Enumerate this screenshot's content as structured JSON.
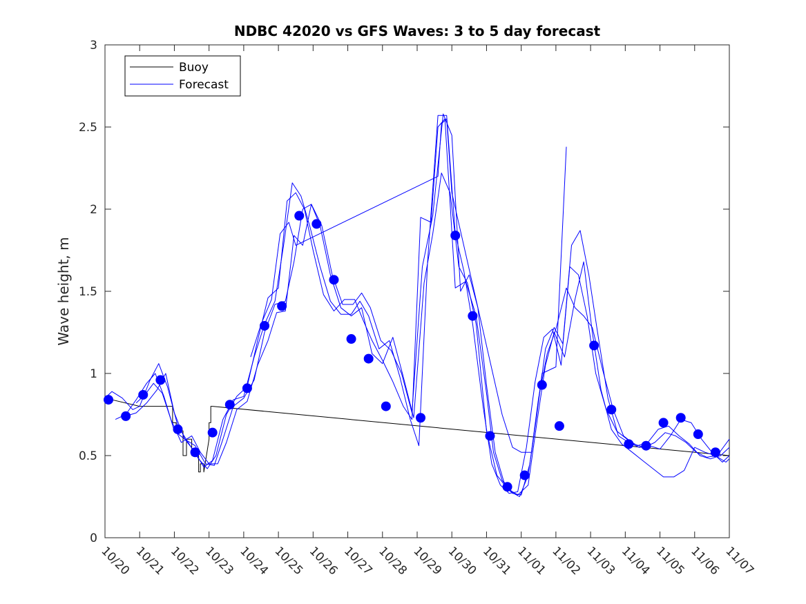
{
  "chart_data": {
    "type": "line",
    "title": "NDBC 42020 vs GFS Waves: 3 to 5 day forecast",
    "xlabel": "",
    "ylabel": "Wave height, m",
    "xlim": [
      0,
      18
    ],
    "ylim": [
      0,
      3
    ],
    "categories": [
      "10/20",
      "10/21",
      "10/22",
      "10/23",
      "10/24",
      "10/25",
      "10/26",
      "10/27",
      "10/28",
      "10/29",
      "10/30",
      "10/31",
      "11/01",
      "11/02",
      "11/03",
      "11/04",
      "11/05",
      "11/06",
      "11/07"
    ],
    "y_ticks": [
      "0",
      "0.5",
      "1",
      "1.5",
      "2",
      "2.5",
      "3"
    ],
    "colors": {
      "buoy": "#000000",
      "forecast": "#0000ff",
      "axes": "#262626"
    },
    "legend": {
      "position": "top-left",
      "entries": [
        "Buoy",
        "Forecast"
      ]
    },
    "series": [
      {
        "name": "Buoy",
        "x": [
          0,
          1.0,
          1.95,
          1.95,
          2.05,
          2.05,
          2.25,
          2.25,
          2.35,
          2.35,
          2.5,
          2.5,
          2.7,
          2.7,
          2.75,
          2.75,
          2.85,
          2.85,
          3.0,
          3.0,
          3.05,
          3.05,
          3.1,
          3.1,
          18,
          18
        ],
        "y": [
          0.85,
          0.8,
          0.8,
          0.7,
          0.7,
          0.65,
          0.65,
          0.5,
          0.5,
          0.6,
          0.6,
          0.5,
          0.5,
          0.4,
          0.4,
          0.45,
          0.45,
          0.4,
          0.6,
          0.7,
          0.7,
          0.8,
          0.8,
          0.8,
          0.5,
          0.6
        ]
      },
      {
        "name": "Forecast run 1",
        "x": [
          0,
          0.2,
          0.5,
          0.8,
          1.0,
          1.3,
          1.55,
          1.8,
          2.1,
          2.4,
          2.7,
          2.95,
          3.2,
          3.5,
          3.8,
          4.1,
          4.4,
          4.7,
          5.0,
          5.25,
          5.5,
          5.75,
          6.0,
          6.3,
          6.6,
          6.9,
          7.2,
          7.45,
          7.7,
          8.0,
          8.3,
          8.6,
          8.85,
          9.1,
          9.4,
          9.6,
          9.8,
          10.1,
          10.4,
          10.7,
          11.0,
          11.2,
          11.45,
          11.7,
          11.95,
          12.2,
          12.45,
          12.7,
          12.95,
          13.2,
          13.45,
          13.7,
          13.95,
          14.2,
          14.5,
          14.8,
          15.1,
          15.4,
          15.7,
          16.0,
          16.3,
          16.6,
          16.9,
          17.2,
          17.5,
          17.8,
          18.0
        ],
        "y": [
          0.85,
          0.89,
          0.85,
          0.78,
          0.8,
          0.96,
          1.06,
          0.92,
          0.68,
          0.58,
          0.48,
          0.42,
          0.5,
          0.75,
          0.86,
          0.92,
          1.2,
          1.46,
          1.52,
          2.05,
          2.1,
          2.0,
          1.75,
          1.48,
          1.38,
          1.45,
          1.45,
          1.32,
          1.2,
          1.08,
          0.95,
          0.8,
          0.72,
          1.95,
          1.92,
          2.5,
          2.55,
          1.52,
          1.56,
          1.35,
          0.88,
          0.52,
          0.35,
          0.28,
          0.25,
          0.38,
          0.75,
          1.15,
          1.28,
          1.18,
          1.78,
          1.87,
          1.6,
          1.25,
          0.85,
          0.62,
          0.58,
          0.55,
          0.56,
          0.54,
          0.62,
          0.72,
          0.7,
          0.6,
          0.52,
          0.46,
          0.5
        ]
      },
      {
        "name": "Forecast run 2",
        "x": [
          0.3,
          0.6,
          0.9,
          1.2,
          1.45,
          1.7,
          2.0,
          2.3,
          2.6,
          2.85,
          3.1,
          3.4,
          3.7,
          4.0,
          4.3,
          4.6,
          4.9,
          5.15,
          5.4,
          5.65,
          5.9,
          6.2,
          6.5,
          6.8,
          7.1,
          7.35,
          7.6,
          7.9,
          8.2,
          8.5,
          8.8,
          9.05,
          9.3,
          9.6,
          9.85,
          10.1,
          10.35,
          10.6,
          10.9,
          11.15,
          11.4,
          11.65,
          11.9,
          12.15,
          12.4,
          12.65,
          12.9,
          13.15,
          13.4,
          13.65,
          13.9,
          14.15,
          14.45,
          14.75,
          15.05,
          15.35,
          15.65,
          15.95,
          16.25,
          16.55,
          16.85,
          17.15,
          17.45,
          17.75,
          18.0
        ],
        "y": [
          0.72,
          0.75,
          0.84,
          0.94,
          1.0,
          0.86,
          0.65,
          0.6,
          0.52,
          0.43,
          0.47,
          0.72,
          0.84,
          0.86,
          1.1,
          1.3,
          1.44,
          1.78,
          2.16,
          2.08,
          1.9,
          1.65,
          1.44,
          1.36,
          1.36,
          1.44,
          1.35,
          1.15,
          1.2,
          0.98,
          0.72,
          0.56,
          1.68,
          2.57,
          2.57,
          1.85,
          1.62,
          1.3,
          0.8,
          0.45,
          0.32,
          0.27,
          0.28,
          0.55,
          0.95,
          1.22,
          1.27,
          1.05,
          1.65,
          1.6,
          1.35,
          1.0,
          0.78,
          0.65,
          0.6,
          0.56,
          0.58,
          0.66,
          0.68,
          0.62,
          0.57,
          0.5,
          0.48,
          0.5,
          0.55
        ]
      },
      {
        "name": "Forecast run 3",
        "x": [
          0.6,
          0.9,
          1.2,
          1.5,
          1.75,
          2.0,
          2.3,
          2.6,
          2.9,
          3.15,
          3.4,
          3.7,
          4.0,
          4.3,
          4.6,
          4.9,
          5.2,
          5.45,
          5.7,
          5.95,
          6.25,
          6.55,
          6.85,
          7.15,
          7.4,
          7.65,
          7.95,
          8.25,
          8.55,
          8.85,
          9.15,
          9.45,
          9.75,
          10.0,
          10.25,
          10.5,
          10.75,
          11.0,
          11.25,
          11.5,
          11.75,
          12.0,
          12.25,
          12.5,
          12.75,
          13.0,
          13.3,
          13.55,
          13.8,
          14.05,
          14.35,
          14.65,
          14.95,
          15.25,
          15.55,
          15.85,
          16.15,
          16.45,
          16.75,
          17.05,
          17.35,
          17.65,
          18.0
        ],
        "y": [
          0.74,
          0.76,
          0.82,
          0.9,
          1.0,
          0.76,
          0.6,
          0.56,
          0.45,
          0.44,
          0.6,
          0.8,
          0.85,
          0.96,
          1.25,
          1.42,
          1.44,
          1.68,
          2.0,
          2.03,
          1.9,
          1.6,
          1.42,
          1.42,
          1.49,
          1.4,
          1.2,
          1.14,
          1.0,
          0.76,
          1.65,
          1.96,
          2.58,
          2.45,
          1.5,
          1.6,
          1.4,
          0.93,
          0.52,
          0.34,
          0.27,
          0.26,
          0.45,
          0.85,
          1.12,
          1.27,
          1.52,
          1.4,
          1.35,
          1.28,
          1.02,
          0.78,
          0.62,
          0.57,
          0.55,
          0.58,
          0.64,
          0.62,
          0.58,
          0.52,
          0.49,
          0.5,
          0.6
        ]
      },
      {
        "name": "Forecast run 4",
        "x": [
          0.9,
          1.15,
          1.4,
          1.65,
          1.9,
          2.2,
          2.5,
          2.75,
          3.0,
          3.25,
          3.5,
          3.8,
          4.1,
          4.4,
          4.7,
          4.95,
          5.2,
          5.45,
          5.7,
          5.95,
          6.2,
          6.5,
          6.8,
          7.1,
          7.4,
          7.7,
          8.0,
          8.3,
          8.6,
          8.9,
          9.2,
          9.45,
          9.7,
          9.95,
          10.2,
          10.45,
          10.7,
          11.0,
          11.3,
          11.6,
          11.9,
          12.2,
          12.45,
          12.7,
          12.95,
          13.25,
          13.55,
          13.8,
          14.05,
          14.3,
          14.6,
          14.9,
          15.2,
          15.5,
          15.8,
          16.1,
          16.4,
          16.7,
          17.0,
          17.3,
          17.6,
          17.9,
          18.0
        ],
        "y": [
          0.82,
          0.87,
          0.94,
          0.88,
          0.72,
          0.58,
          0.62,
          0.52,
          0.45,
          0.45,
          0.58,
          0.78,
          0.83,
          1.05,
          1.2,
          1.37,
          1.38,
          1.84,
          1.78,
          2.03,
          1.9,
          1.6,
          1.4,
          1.35,
          1.4,
          1.12,
          1.06,
          1.22,
          0.98,
          0.73,
          1.55,
          1.85,
          2.22,
          2.1,
          1.65,
          1.55,
          1.3,
          0.65,
          0.38,
          0.3,
          0.26,
          0.32,
          0.7,
          1.05,
          1.25,
          1.1,
          1.45,
          1.68,
          1.25,
          0.9,
          0.66,
          0.57,
          0.52,
          0.47,
          0.42,
          0.37,
          0.37,
          0.41,
          0.55,
          0.52,
          0.5,
          0.46,
          0.48
        ]
      },
      {
        "name": "Forecast run 5",
        "x": [
          4.2,
          4.5,
          4.8,
          5.05,
          5.3,
          5.5,
          9.6,
          9.7,
          9.85,
          10.0,
          11.45,
          11.75,
          12.0,
          12.3,
          12.6,
          13.0,
          13.3
        ],
        "y": [
          1.1,
          1.3,
          1.45,
          1.85,
          1.92,
          1.78,
          2.2,
          2.52,
          2.55,
          2.1,
          0.75,
          0.55,
          0.52,
          0.52,
          1.0,
          1.04,
          2.38
        ]
      },
      {
        "name": "Forecast (3-5 day, markers)",
        "x": [
          0.1,
          0.6,
          1.1,
          1.6,
          2.1,
          2.6,
          3.1,
          3.6,
          4.1,
          4.6,
          5.1,
          5.6,
          6.1,
          6.6,
          7.1,
          7.6,
          8.1,
          9.1,
          10.1,
          10.6,
          11.1,
          11.6,
          12.1,
          12.6,
          13.1,
          14.1,
          14.6,
          15.1,
          15.6,
          16.1,
          16.6,
          17.1,
          17.6
        ],
        "y": [
          0.84,
          0.74,
          0.87,
          0.96,
          0.66,
          0.52,
          0.64,
          0.81,
          0.91,
          1.29,
          1.41,
          1.96,
          1.91,
          1.57,
          1.21,
          1.09,
          0.8,
          0.73,
          1.84,
          1.35,
          0.62,
          0.31,
          0.38,
          0.93,
          0.68,
          1.17,
          0.78,
          0.57,
          0.56,
          0.7,
          0.73,
          0.63,
          0.52
        ]
      }
    ]
  }
}
